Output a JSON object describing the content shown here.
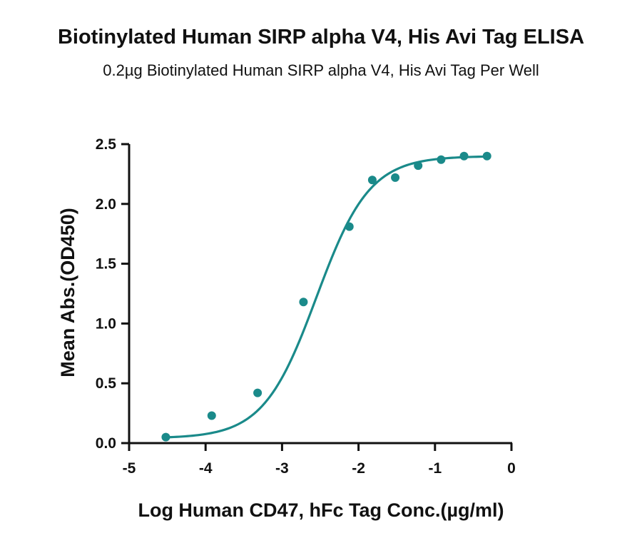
{
  "header": {
    "title": "Biotinylated Human SIRP alpha V4, His Avi Tag ELISA",
    "subtitle": "0.2µg Biotinylated Human SIRP alpha V4, His Avi Tag Per Well"
  },
  "chart_data": {
    "type": "scatter",
    "title": "Biotinylated Human SIRP alpha V4, His Avi Tag ELISA",
    "subtitle": "0.2µg Biotinylated Human SIRP alpha V4, His Avi Tag Per Well",
    "xlabel": "Log Human CD47, hFc Tag Conc.(µg/ml)",
    "ylabel": "Mean Abs.(OD450)",
    "xlim": [
      -5,
      0
    ],
    "ylim": [
      0,
      2.5
    ],
    "xticks": [
      "-5",
      "-4",
      "-3",
      "-2",
      "-1",
      "0"
    ],
    "yticks": [
      "0.0",
      "0.5",
      "1.0",
      "1.5",
      "2.0",
      "2.5"
    ],
    "grid": false,
    "color": "#1a8a8a",
    "series": [
      {
        "points": [
          {
            "x": -4.52,
            "y": 0.05
          },
          {
            "x": -3.92,
            "y": 0.23
          },
          {
            "x": -3.32,
            "y": 0.42
          },
          {
            "x": -2.72,
            "y": 1.18
          },
          {
            "x": -2.12,
            "y": 1.81
          },
          {
            "x": -1.82,
            "y": 2.2
          },
          {
            "x": -1.52,
            "y": 2.22
          },
          {
            "x": -1.22,
            "y": 2.32
          },
          {
            "x": -0.92,
            "y": 2.37
          },
          {
            "x": -0.62,
            "y": 2.4
          },
          {
            "x": -0.32,
            "y": 2.4
          }
        ],
        "fit_curve": {
          "model": "4PL",
          "bottom": 0.04,
          "top": 2.4,
          "logEC50": -2.55,
          "hill": 1.25,
          "x_range": [
            -4.52,
            -0.32
          ]
        }
      }
    ]
  }
}
